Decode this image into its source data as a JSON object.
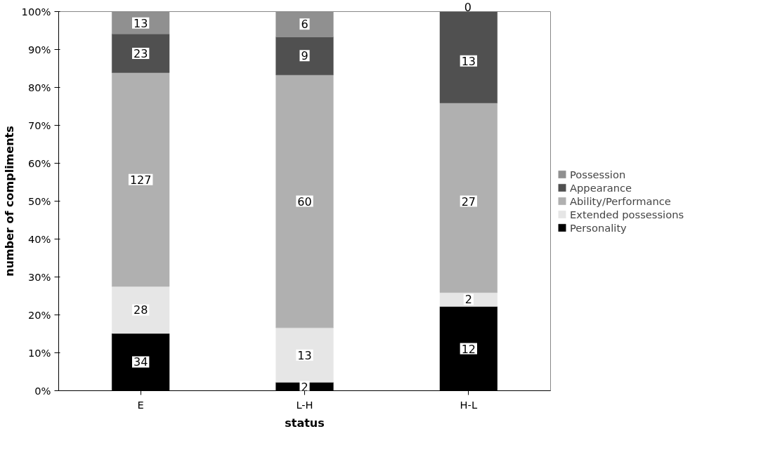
{
  "chart_data": {
    "type": "bar",
    "stacked": true,
    "xlabel": "status",
    "ylabel": "number of compliments",
    "categories": [
      "E",
      "L-H",
      "H-L"
    ],
    "series": [
      {
        "name": "Personality",
        "color": "#000000",
        "values": [
          15.1,
          2.2,
          22.2
        ]
      },
      {
        "name": "Extended possessions",
        "color": "#e6e6e6",
        "values": [
          12.4,
          14.4,
          3.7
        ]
      },
      {
        "name": "Ability/Performance",
        "color": "#b0b0b0",
        "values": [
          56.4,
          66.7,
          50.0
        ]
      },
      {
        "name": "Appearance",
        "color": "#505050",
        "values": [
          10.2,
          10.0,
          24.1
        ]
      },
      {
        "name": "Possession",
        "color": "#909090",
        "values": [
          5.9,
          6.7,
          0
        ]
      }
    ],
    "annotations": [
      {
        "text": "34",
        "x": "E",
        "y": 7.6
      },
      {
        "text": "28",
        "x": "E",
        "y": 21.3
      },
      {
        "text": "127",
        "x": "E",
        "y": 55.7
      },
      {
        "text": "23",
        "x": "E",
        "y": 89.0
      },
      {
        "text": "13",
        "x": "E",
        "y": 97.0
      },
      {
        "text": "2",
        "x": "L-H",
        "y": 1.1
      },
      {
        "text": "13",
        "x": "L-H",
        "y": 9.4
      },
      {
        "text": "60",
        "x": "L-H",
        "y": 50.0
      },
      {
        "text": "9",
        "x": "L-H",
        "y": 88.4
      },
      {
        "text": "6",
        "x": "L-H",
        "y": 96.7
      },
      {
        "text": "12",
        "x": "H-L",
        "y": 11.1
      },
      {
        "text": "2",
        "x": "H-L",
        "y": 24.1
      },
      {
        "text": "27",
        "x": "H-L",
        "y": 50.0
      },
      {
        "text": "13",
        "x": "H-L",
        "y": 87.0
      },
      {
        "text": "0",
        "x": "H-L",
        "y": 100
      }
    ],
    "ylim": [
      0,
      100
    ],
    "yticks": [
      {
        "value": 0,
        "label": "0%"
      },
      {
        "value": 10,
        "label": "10%"
      },
      {
        "value": 20,
        "label": "20%"
      },
      {
        "value": 30,
        "label": "30%"
      },
      {
        "value": 40,
        "label": "40%"
      },
      {
        "value": 50,
        "label": "50%"
      },
      {
        "value": 60,
        "label": "60%"
      },
      {
        "value": 70,
        "label": "70%"
      },
      {
        "value": 80,
        "label": "80%"
      },
      {
        "value": 90,
        "label": "90%"
      },
      {
        "value": 100,
        "label": "100%"
      }
    ],
    "grid": false,
    "legend": "right"
  }
}
